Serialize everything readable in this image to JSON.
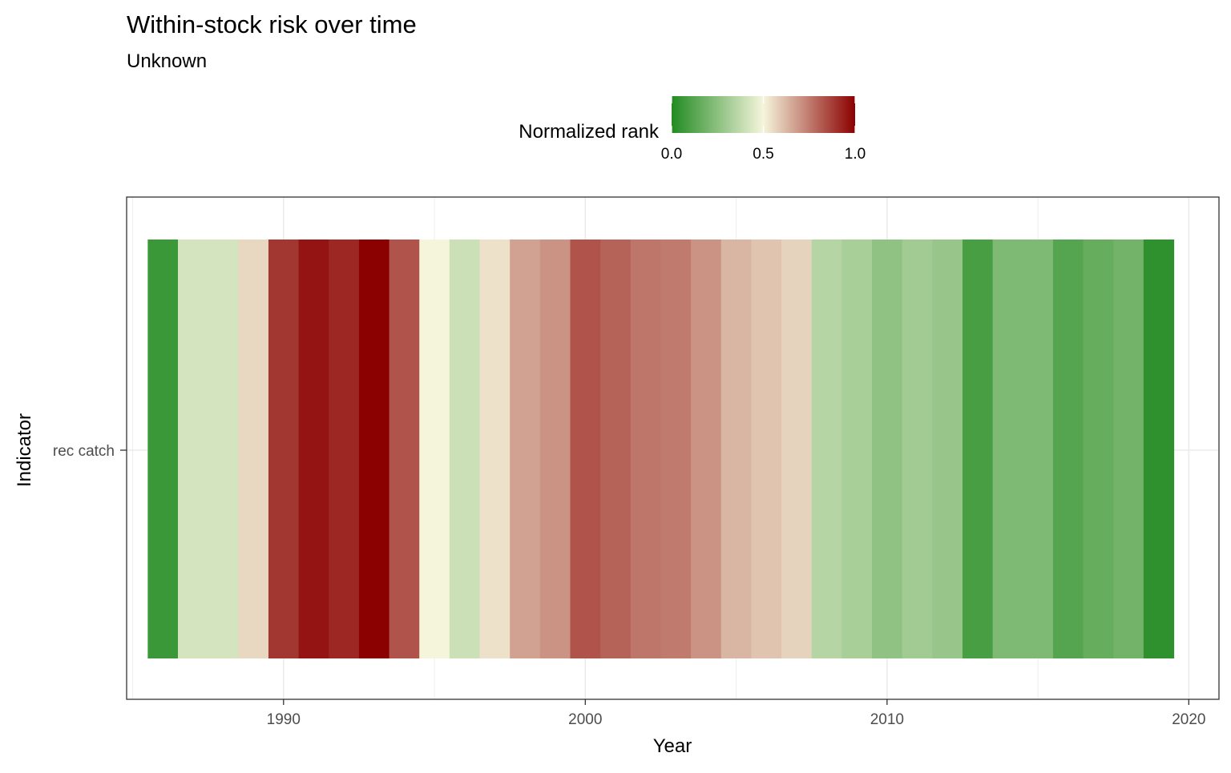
{
  "chart_data": {
    "type": "heatmap",
    "title": "Within-stock risk over time",
    "subtitle": "Unknown",
    "xlabel": "Year",
    "ylabel": "Indicator",
    "row": "rec catch",
    "x": [
      1986,
      1987,
      1988,
      1989,
      1990,
      1991,
      1992,
      1993,
      1994,
      1995,
      1996,
      1997,
      1998,
      1999,
      2000,
      2001,
      2002,
      2003,
      2004,
      2005,
      2006,
      2007,
      2008,
      2009,
      2010,
      2011,
      2012,
      2013,
      2014,
      2015,
      2016,
      2017,
      2018,
      2019
    ],
    "values": [
      0.06,
      0.42,
      0.42,
      0.56,
      0.89,
      0.96,
      0.92,
      1.0,
      0.83,
      0.5,
      0.4,
      0.54,
      0.67,
      0.7,
      0.83,
      0.8,
      0.76,
      0.75,
      0.7,
      0.63,
      0.6,
      0.57,
      0.35,
      0.32,
      0.26,
      0.3,
      0.28,
      0.09,
      0.22,
      0.22,
      0.12,
      0.16,
      0.19,
      0.03
    ],
    "xlim": [
      1984.8,
      2021.0
    ],
    "xticks": [
      1990,
      2000,
      2010,
      2020
    ],
    "xtick_labels": [
      "1990",
      "2000",
      "2010",
      "2020"
    ],
    "grid": true,
    "legend": {
      "title": "Normalized rank",
      "position": "top",
      "ticks": [
        0.0,
        0.5,
        1.0
      ],
      "tick_labels": [
        "0.0",
        "0.5",
        "1.0"
      ],
      "colors": {
        "low": "#228b22",
        "mid": "#f5f5dc",
        "high": "#8b0000"
      }
    }
  }
}
